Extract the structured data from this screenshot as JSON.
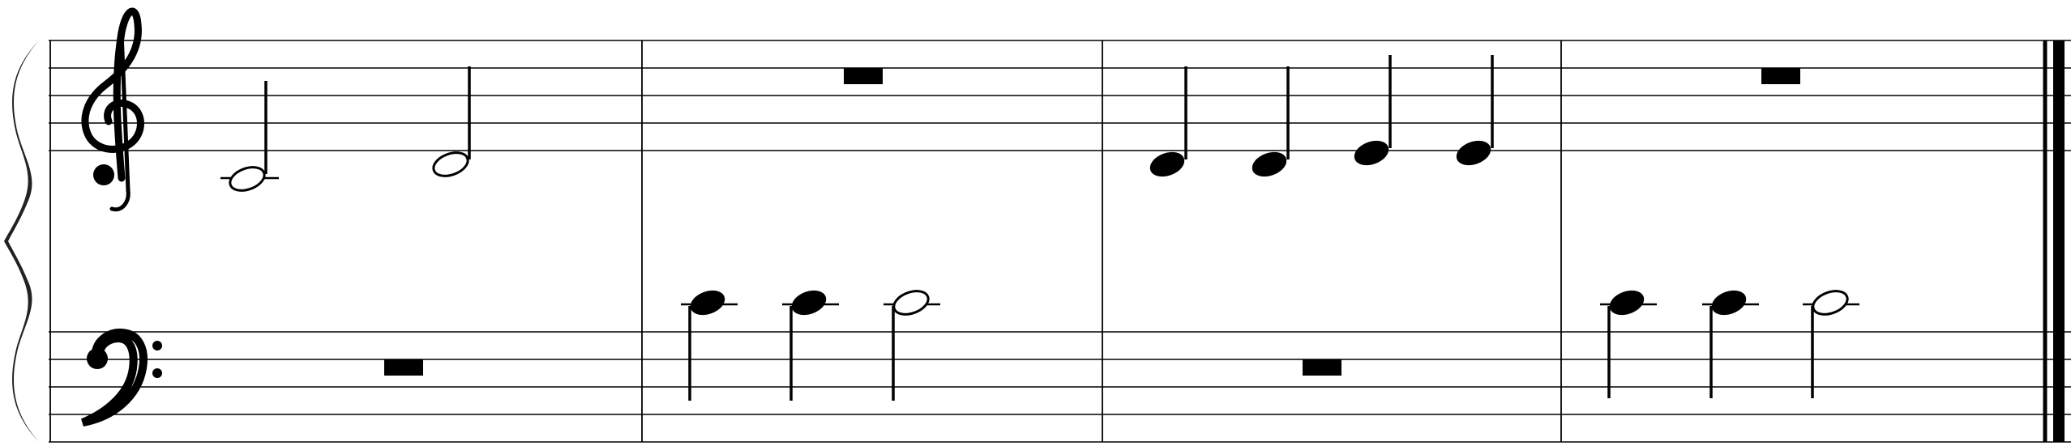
{
  "score": {
    "clefs": [
      "treble-clef-icon",
      "bass-clef-icon"
    ],
    "measures": [
      {
        "treble": [
          {
            "pitch": "C4",
            "duration": "half"
          },
          {
            "pitch": "D4",
            "duration": "half"
          }
        ],
        "bass": [
          {
            "rest": "half-rest"
          }
        ]
      },
      {
        "treble": [
          {
            "rest": "half-rest"
          }
        ],
        "bass": [
          {
            "pitch": "C4",
            "duration": "quarter"
          },
          {
            "pitch": "C4",
            "duration": "quarter"
          },
          {
            "pitch": "C4",
            "duration": "half"
          }
        ]
      },
      {
        "treble": [
          {
            "pitch": "D4",
            "duration": "quarter"
          },
          {
            "pitch": "D4",
            "duration": "quarter"
          },
          {
            "pitch": "E4",
            "duration": "quarter"
          },
          {
            "pitch": "E4",
            "duration": "quarter"
          }
        ],
        "bass": [
          {
            "rest": "half-rest"
          }
        ]
      },
      {
        "treble": [
          {
            "rest": "half-rest"
          }
        ],
        "bass": [
          {
            "pitch": "C4",
            "duration": "quarter"
          },
          {
            "pitch": "C4",
            "duration": "quarter"
          },
          {
            "pitch": "C4",
            "duration": "half"
          }
        ]
      }
    ],
    "final_barline": "final-barline"
  }
}
